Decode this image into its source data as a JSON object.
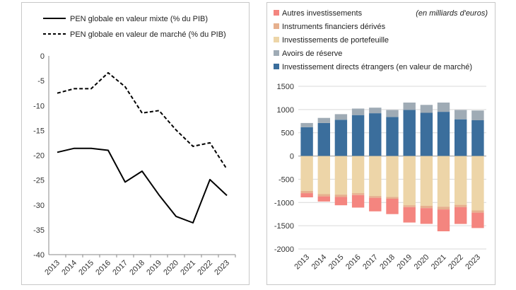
{
  "chart_data": [
    {
      "type": "line",
      "title": "",
      "xlabel": "",
      "ylabel": "",
      "ylim": [
        -40,
        0
      ],
      "yticks": [
        0,
        -5,
        -10,
        -15,
        -20,
        -25,
        -30,
        -35,
        -40
      ],
      "categories": [
        "2013",
        "2014",
        "2015",
        "2016",
        "2017",
        "2018",
        "2019",
        "2020",
        "2021",
        "2022",
        "2023"
      ],
      "grid": false,
      "legend_position": "top",
      "series": [
        {
          "name": "PEN globale en valeur mixte (% du PIB)",
          "style": "solid",
          "color": "#000000",
          "values": [
            -19.4,
            -18.6,
            -18.6,
            -19.0,
            -25.4,
            -23.2,
            -28.0,
            -32.3,
            -33.6,
            -24.9,
            -28.1
          ]
        },
        {
          "name": "PEN globale en valeur de marché (% du PIB)",
          "style": "dashed",
          "color": "#000000",
          "values": [
            -7.5,
            -6.6,
            -6.6,
            -3.4,
            -6.2,
            -11.5,
            -11.0,
            -14.9,
            -18.2,
            -17.5,
            -22.8
          ]
        }
      ]
    },
    {
      "type": "bar",
      "stacked": true,
      "title": "",
      "subtitle": "(en milliards d'euros)",
      "xlabel": "",
      "ylabel": "",
      "ylim": [
        -2000,
        1500
      ],
      "yticks": [
        1500,
        1000,
        500,
        0,
        -500,
        -1000,
        -1500,
        -2000
      ],
      "categories": [
        "2013",
        "2014",
        "2015",
        "2016",
        "2017",
        "2018",
        "2019",
        "2020",
        "2021",
        "2022",
        "2023"
      ],
      "grid": true,
      "legend_position": "top",
      "series": [
        {
          "name": "Autres investissements",
          "color": "#f4857f",
          "values": [
            -90,
            -110,
            -180,
            -270,
            -290,
            -330,
            -330,
            -340,
            -470,
            -360,
            -330
          ]
        },
        {
          "name": "Instruments financiers dérivés",
          "color": "#e6b08e",
          "values": [
            -50,
            -50,
            -50,
            -40,
            -40,
            -40,
            -40,
            -50,
            -60,
            -50,
            -50
          ]
        },
        {
          "name": "Investissements de portefeuille",
          "color": "#edd5a8",
          "values": [
            -750,
            -820,
            -830,
            -800,
            -860,
            -880,
            -1060,
            -1070,
            -1090,
            -1050,
            -1170
          ]
        },
        {
          "name": "Avoirs de réserve",
          "color": "#9fabb5",
          "values": [
            90,
            110,
            120,
            140,
            120,
            150,
            160,
            170,
            200,
            200,
            210
          ]
        },
        {
          "name": "Investissement directs étrangers (en valeur de marché)",
          "color": "#3b6e9c",
          "values": [
            620,
            710,
            780,
            880,
            920,
            840,
            990,
            930,
            950,
            790,
            770
          ]
        }
      ]
    }
  ]
}
